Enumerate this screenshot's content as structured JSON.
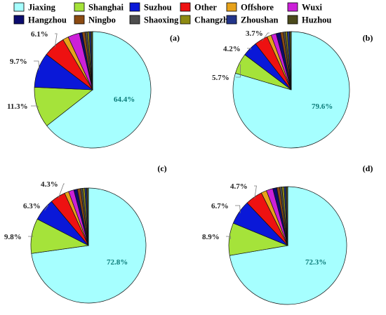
{
  "colors": {
    "Jiaxing": "#a6ffff",
    "Shanghai": "#a5e33a",
    "Suzhou": "#0a18d8",
    "Other": "#ee1111",
    "Offshore": "#e7a21a",
    "Wuxi": "#cc20d8",
    "Hangzhou": "#0b0b6e",
    "Ningbo": "#8b4a12",
    "Shaoxing": "#4e4e4e",
    "Changzhou": "#8e8a12",
    "Zhoushan": "#23358a",
    "Huzhou": "#4b4a1c"
  },
  "chart_data": [
    {
      "type": "pie",
      "label": "(a)",
      "slices": [
        {
          "name": "Jiaxing",
          "value": 64.4
        },
        {
          "name": "Shanghai",
          "value": 11.3
        },
        {
          "name": "Suzhou",
          "value": 9.7
        },
        {
          "name": "Other",
          "value": 6.1
        },
        {
          "name": "Offshore",
          "value": 1.6
        },
        {
          "name": "Wuxi",
          "value": 3.2
        },
        {
          "name": "Hangzhou",
          "value": 0.8
        },
        {
          "name": "Ningbo",
          "value": 0.8
        },
        {
          "name": "Shaoxing",
          "value": 0.6
        },
        {
          "name": "Changzhou",
          "value": 0.5
        },
        {
          "name": "Zhoushan",
          "value": 0.5
        },
        {
          "name": "Huzhou",
          "value": 0.5
        }
      ],
      "data_labels": [
        "64.4%",
        "11.3%",
        "9.7%",
        "6.1%"
      ]
    },
    {
      "type": "pie",
      "label": "(b)",
      "slices": [
        {
          "name": "Jiaxing",
          "value": 79.6
        },
        {
          "name": "Shanghai",
          "value": 5.7
        },
        {
          "name": "Suzhou",
          "value": 4.2
        },
        {
          "name": "Other",
          "value": 3.7
        },
        {
          "name": "Offshore",
          "value": 1.2
        },
        {
          "name": "Wuxi",
          "value": 1.4
        },
        {
          "name": "Hangzhou",
          "value": 1.2
        },
        {
          "name": "Ningbo",
          "value": 0.8
        },
        {
          "name": "Shaoxing",
          "value": 0.6
        },
        {
          "name": "Changzhou",
          "value": 0.5
        },
        {
          "name": "Zhoushan",
          "value": 0.6
        },
        {
          "name": "Huzhou",
          "value": 0.5
        }
      ],
      "data_labels": [
        "79.6%",
        "5.7%",
        "4.2%",
        "3.7%"
      ]
    },
    {
      "type": "pie",
      "label": "(c)",
      "slices": [
        {
          "name": "Jiaxing",
          "value": 72.8
        },
        {
          "name": "Shanghai",
          "value": 9.8
        },
        {
          "name": "Suzhou",
          "value": 6.3
        },
        {
          "name": "Other",
          "value": 4.3
        },
        {
          "name": "Offshore",
          "value": 1.2
        },
        {
          "name": "Wuxi",
          "value": 1.5
        },
        {
          "name": "Hangzhou",
          "value": 1.0
        },
        {
          "name": "Ningbo",
          "value": 0.9
        },
        {
          "name": "Shaoxing",
          "value": 0.6
        },
        {
          "name": "Changzhou",
          "value": 0.6
        },
        {
          "name": "Zhoushan",
          "value": 0.5
        },
        {
          "name": "Huzhou",
          "value": 0.5
        }
      ],
      "data_labels": [
        "72.8%",
        "9.8%",
        "6.3%",
        "4.3%"
      ]
    },
    {
      "type": "pie",
      "label": "(d)",
      "slices": [
        {
          "name": "Jiaxing",
          "value": 72.3
        },
        {
          "name": "Shanghai",
          "value": 8.9
        },
        {
          "name": "Suzhou",
          "value": 6.7
        },
        {
          "name": "Other",
          "value": 4.7
        },
        {
          "name": "Offshore",
          "value": 1.5
        },
        {
          "name": "Wuxi",
          "value": 1.8
        },
        {
          "name": "Hangzhou",
          "value": 1.1
        },
        {
          "name": "Ningbo",
          "value": 0.8
        },
        {
          "name": "Shaoxing",
          "value": 0.6
        },
        {
          "name": "Changzhou",
          "value": 0.6
        },
        {
          "name": "Zhoushan",
          "value": 0.5
        },
        {
          "name": "Huzhou",
          "value": 0.5
        }
      ],
      "data_labels": [
        "72.3%",
        "8.9%",
        "6.7%",
        "4.7%"
      ]
    }
  ],
  "legend": {
    "items": [
      "Jiaxing",
      "Shanghai",
      "Suzhou",
      "Other",
      "Offshore",
      "Wuxi",
      "Hangzhou",
      "Ningbo",
      "Shaoxing",
      "Changzhou",
      "Zhoushan",
      "Huzhou"
    ],
    "placement": "top"
  }
}
